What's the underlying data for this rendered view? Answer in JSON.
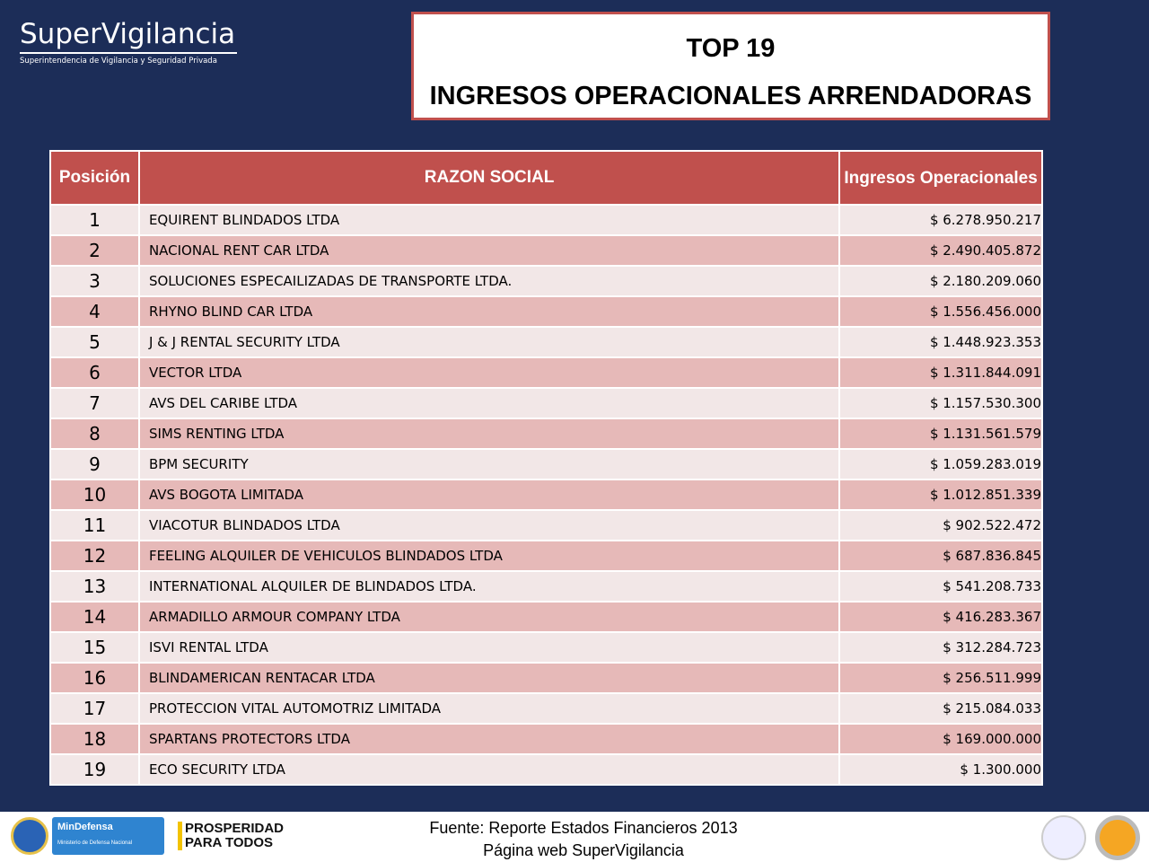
{
  "logo": {
    "name": "SuperVigilancia",
    "subtitle": "Superintendencia de Vigilancia y Seguridad Privada"
  },
  "title": {
    "line1": "TOP 19",
    "line2": "INGRESOS OPERACIONALES ARRENDADORAS"
  },
  "table": {
    "headers": [
      "Posición",
      "RAZON SOCIAL",
      "Ingresos Operacionales"
    ],
    "rows": [
      [
        "1",
        "EQUIRENT BLINDADOS LTDA",
        "$ 6.278.950.217"
      ],
      [
        "2",
        "NACIONAL RENT CAR LTDA",
        "$ 2.490.405.872"
      ],
      [
        "3",
        "SOLUCIONES ESPECAILIZADAS DE TRANSPORTE LTDA.",
        "$ 2.180.209.060"
      ],
      [
        "4",
        "RHYNO BLIND CAR LTDA",
        "$ 1.556.456.000"
      ],
      [
        "5",
        "J & J RENTAL SECURITY LTDA",
        "$ 1.448.923.353"
      ],
      [
        "6",
        "VECTOR LTDA",
        "$ 1.311.844.091"
      ],
      [
        "7",
        "AVS DEL CARIBE LTDA",
        "$ 1.157.530.300"
      ],
      [
        "8",
        "SIMS RENTING LTDA",
        "$ 1.131.561.579"
      ],
      [
        "9",
        "BPM SECURITY",
        "$ 1.059.283.019"
      ],
      [
        "10",
        "AVS BOGOTA LIMITADA",
        "$ 1.012.851.339"
      ],
      [
        "11",
        "VIACOTUR BLINDADOS LTDA",
        "$ 902.522.472"
      ],
      [
        "12",
        "FEELING ALQUILER DE VEHICULOS BLINDADOS LTDA",
        "$ 687.836.845"
      ],
      [
        "13",
        "INTERNATIONAL ALQUILER DE BLINDADOS LTDA.",
        "$ 541.208.733"
      ],
      [
        "14",
        "ARMADILLO ARMOUR COMPANY LTDA",
        "$ 416.283.367"
      ],
      [
        "15",
        "ISVI RENTAL LTDA",
        "$ 312.284.723"
      ],
      [
        "16",
        "BLINDAMERICAN RENTACAR LTDA",
        "$ 256.511.999"
      ],
      [
        "17",
        "PROTECCION VITAL AUTOMOTRIZ LIMITADA",
        "$ 215.084.033"
      ],
      [
        "18",
        "SPARTANS PROTECTORS LTDA",
        "$ 169.000.000"
      ],
      [
        "19",
        "ECO SECURITY LTDA",
        "$ 1.300.000"
      ]
    ]
  },
  "footer": {
    "source": "Fuente: Reporte Estados Financieros 2013",
    "web": "Página web SuperVigilancia",
    "mindefensa": "MinDefensa",
    "mindefensa_sub": "Ministerio de Defensa Nacional",
    "prosperidad1": "PROSPERIDAD",
    "prosperidad2": "PARA TODOS"
  }
}
